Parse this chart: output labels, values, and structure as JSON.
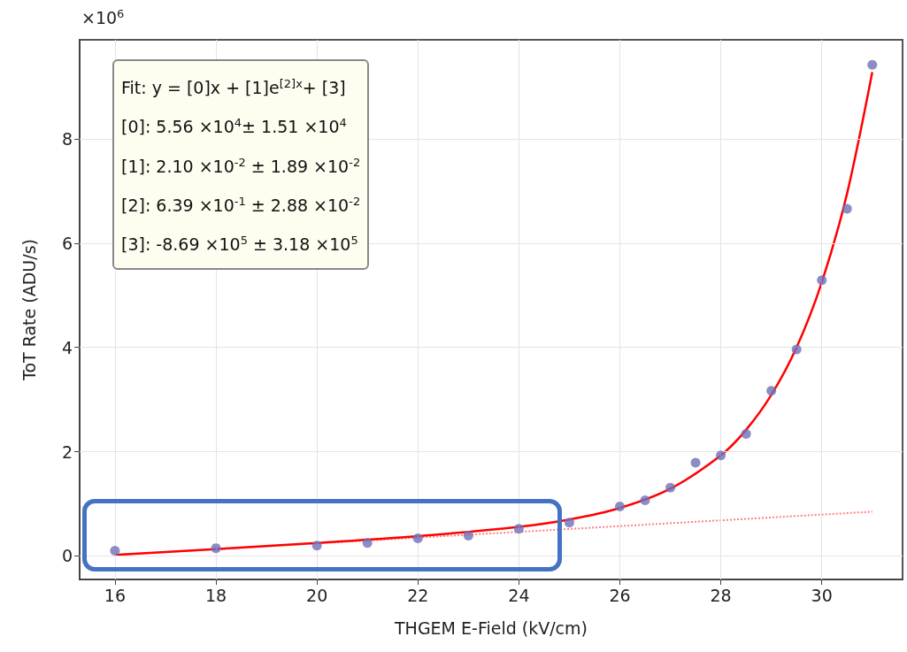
{
  "chart_data": {
    "type": "scatter",
    "xlabel": "THGEM E-Field (kV/cm)",
    "ylabel": "ToT Rate (ADU/s)",
    "xlim": [
      15.3,
      31.6
    ],
    "xticks": [
      16,
      18,
      20,
      22,
      24,
      26,
      28,
      30
    ],
    "ylim": [
      -0.45,
      9.9
    ],
    "yticks": [
      0,
      2,
      4,
      6,
      8
    ],
    "grid": true,
    "marker": "circle",
    "series": [
      {
        "color": "#7070b8",
        "x": [
          16,
          18,
          20,
          21,
          22,
          23,
          24,
          25,
          26,
          26.5,
          27,
          27.5,
          28,
          28.5,
          29,
          29.5,
          30,
          30.5,
          31
        ],
        "values": [
          0.1,
          0.15,
          0.2,
          0.25,
          0.34,
          0.39,
          0.52,
          0.64,
          0.95,
          1.07,
          1.31,
          1.79,
          1.93,
          2.34,
          3.17,
          3.96,
          5.29,
          6.66,
          9.42
        ]
      },
      {
        "type": "line",
        "color": "#ff0000",
        "marker": "none",
        "line_style": "solid",
        "x": [
          16,
          20,
          22,
          24,
          25,
          26,
          27,
          28,
          28.5,
          29,
          29.5,
          30,
          30.5,
          31
        ],
        "values": [
          0.02,
          0.25,
          0.38,
          0.56,
          0.7,
          0.92,
          1.29,
          1.93,
          2.42,
          3.09,
          4.0,
          5.25,
          6.95,
          9.28
        ]
      },
      {
        "type": "line",
        "color": "#ff8080",
        "marker": "none",
        "line_style": "dotted",
        "x": [
          16,
          31
        ],
        "values": [
          0.02,
          0.85
        ]
      }
    ],
    "annotations": [
      "×10$^{6}$",
      "Fit: y = [0]x + [1]e$^{[2]x}$+ [3]",
      "[0]: 5.56 ×10$^{4}$± 1.51 ×10$^{4}$",
      "[1]: 2.10 ×10$^{-2}$ ± 1.89 ×10$^{-2}$",
      "[2]: 6.39 ×10$^{-1}$ ± 2.88 ×10$^{-2}$",
      "[3]: -8.69 ×10$^{5}$ ± 3.18 ×10$^{5}$"
    ]
  }
}
